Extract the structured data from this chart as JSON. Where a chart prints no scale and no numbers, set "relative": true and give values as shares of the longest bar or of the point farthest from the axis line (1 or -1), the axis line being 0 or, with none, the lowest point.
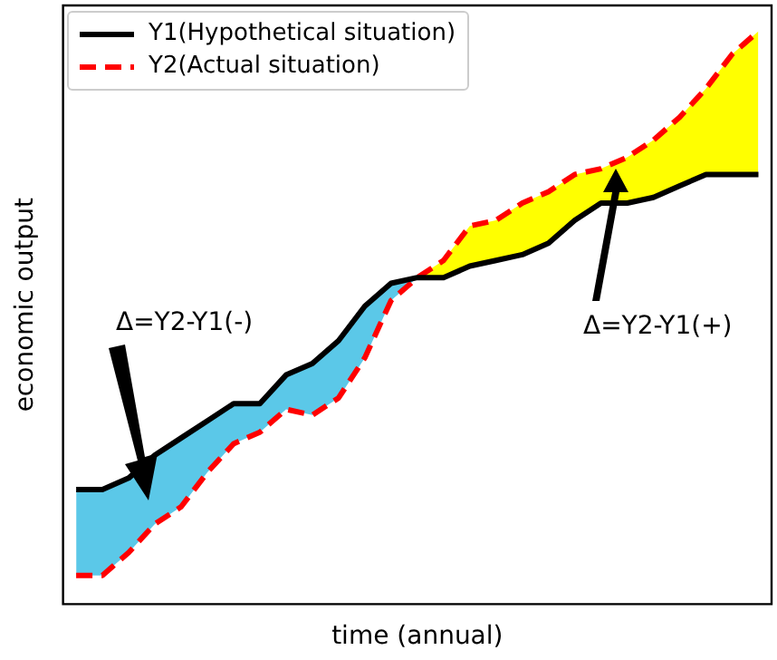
{
  "chart_data": {
    "type": "line",
    "relative": true,
    "xlabel": "time (annual)",
    "ylabel": "economic output",
    "categories": [
      null,
      null,
      null,
      null,
      null,
      null,
      null,
      null,
      null,
      null,
      null,
      null,
      null,
      null,
      null,
      null,
      null,
      null,
      null,
      null,
      null,
      null,
      null,
      null,
      null,
      null,
      null
    ],
    "series": [
      {
        "name": "Y1(Hypothetical situation)",
        "color": "#000000",
        "line_style": "solid",
        "values": [
          0.2,
          0.2,
          0.22,
          0.26,
          0.29,
          0.32,
          0.35,
          0.35,
          0.4,
          0.42,
          0.46,
          0.52,
          0.56,
          0.57,
          0.57,
          0.59,
          0.6,
          0.61,
          0.63,
          0.67,
          0.7,
          0.7,
          0.71,
          0.73,
          0.75,
          0.75,
          0.75
        ]
      },
      {
        "name": "Y2(Actual situation)",
        "color": "#ff0000",
        "line_style": "dashed",
        "values": [
          0.05,
          0.05,
          0.09,
          0.14,
          0.17,
          0.23,
          0.28,
          0.3,
          0.34,
          0.33,
          0.36,
          0.43,
          0.53,
          0.57,
          0.6,
          0.66,
          0.67,
          0.7,
          0.72,
          0.75,
          0.76,
          0.78,
          0.81,
          0.85,
          0.9,
          0.96,
          1
        ]
      }
    ],
    "annotations": [
      "Δ=Y2-Y1(-)",
      "Δ=Y2-Y1(+)"
    ],
    "legend": "top left",
    "grid": false,
    "marker": "none"
  }
}
